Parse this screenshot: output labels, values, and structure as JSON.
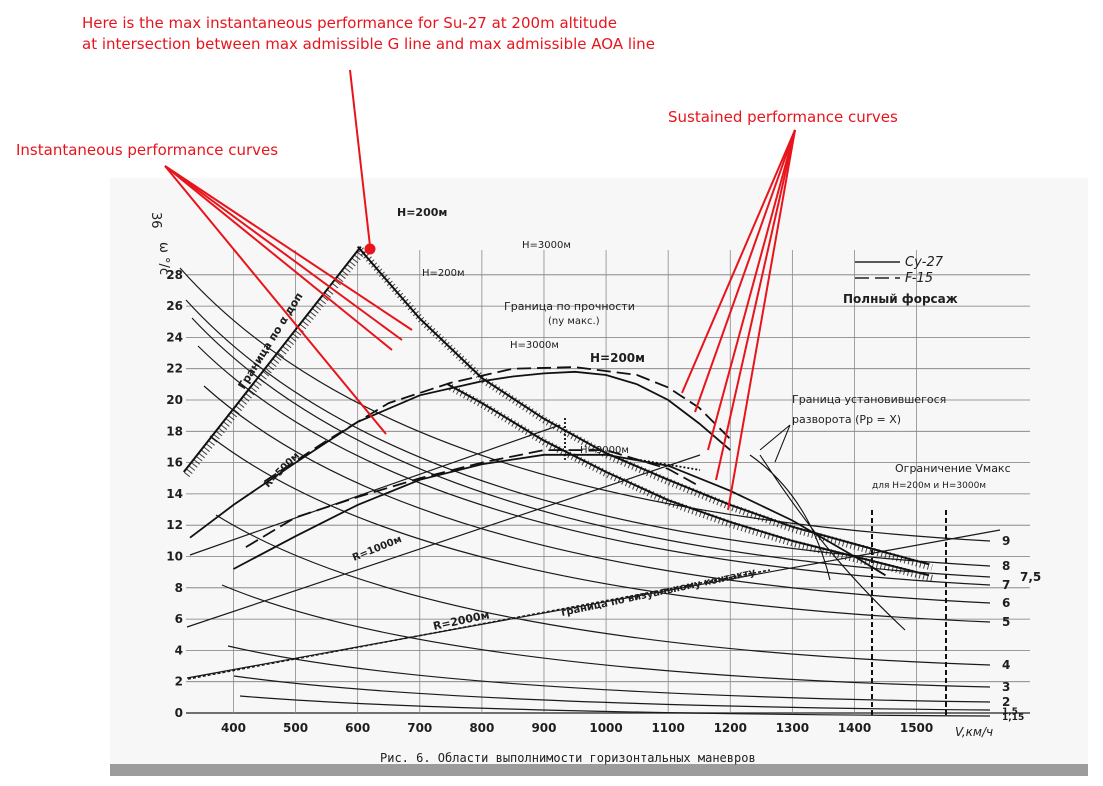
{
  "annotations": {
    "top_line1": "Here is the max instantaneous performance for Su-27 at 200m altitude",
    "top_line2": "at intersection between max admissible G line and max admissible AOA line",
    "instantaneous": "Instantaneous performance curves",
    "sustained": "Sustained performance curves",
    "color": "#e8141c"
  },
  "chart_data": {
    "type": "line",
    "title": "Рис. 6. Области выполнимости горизонтальных маневров",
    "page_number": "36",
    "xlabel": "V,км/ч",
    "ylabel": "ω °/c",
    "xlim": [
      300,
      1560
    ],
    "ylim": [
      0,
      32
    ],
    "x_ticks": [
      "400",
      "500",
      "600",
      "700",
      "800",
      "900",
      "1000",
      "1100",
      "1200",
      "1300",
      "1400",
      "1500"
    ],
    "y_ticks": [
      "0",
      "2",
      "4",
      "6",
      "8",
      "10",
      "12",
      "14",
      "16",
      "18",
      "20",
      "22",
      "24",
      "26",
      "28"
    ],
    "grid": true,
    "legend": {
      "placement": "top-right",
      "entries": [
        "Су-27",
        "F-15"
      ],
      "styles": [
        "solid",
        "dashed"
      ]
    },
    "subtitle": "Полный форсаж",
    "limit_labels": {
      "aoa": "Граница по α доп",
      "strength_line1": "Граница по прочности",
      "strength_line2": "(nу макс.)",
      "sustained_line1": "Граница установившегося",
      "sustained_line2": "разворота (Pр = X)",
      "vmax_line1": "Ограничение Vмакс",
      "vmax_line2": "для H=200м и H=3000м",
      "visual": "граница по визуальному контакту"
    },
    "altitude_labels": [
      "H=200м",
      "H=3000м",
      "H=200м",
      "H=3000м",
      "H=200м",
      "H=3000м"
    ],
    "radius_labels": [
      "R=500м",
      "R=1000м",
      "R=2000м"
    ],
    "g_load_labels": [
      "9",
      "8",
      "7,5",
      "7",
      "6",
      "5",
      "4",
      "3",
      "2",
      "1,5",
      "1,15"
    ],
    "aoa_limit": {
      "x": [
        320,
        605
      ],
      "y": [
        15.4,
        29.8
      ]
    },
    "strength_limit_200": {
      "x": [
        600,
        700,
        800,
        900,
        1000,
        1100,
        1200,
        1300,
        1400,
        1520
      ],
      "y": [
        29.8,
        25.2,
        21.4,
        18.8,
        16.6,
        14.9,
        13.3,
        11.9,
        10.8,
        9.5
      ]
    },
    "strength_limit_3000": {
      "x": [
        745,
        800,
        900,
        1000,
        1100,
        1200,
        1300,
        1400,
        1520
      ],
      "y": [
        21.0,
        19.8,
        17.4,
        15.4,
        13.6,
        12.2,
        11.0,
        10.0,
        8.8
      ]
    },
    "series": [
      {
        "name": "Су-27",
        "label": "H=200м",
        "style": "solid",
        "x": [
          330,
          400,
          500,
          600,
          700,
          800,
          850,
          900,
          950,
          1000,
          1050,
          1100,
          1150,
          1200
        ],
        "y": [
          11.2,
          13.3,
          16.0,
          18.6,
          20.3,
          21.2,
          21.5,
          21.7,
          21.8,
          21.6,
          21.0,
          20.0,
          18.5,
          16.8
        ]
      },
      {
        "name": "F-15",
        "label": "H=200м",
        "style": "dashed",
        "x": [
          450,
          550,
          650,
          750,
          850,
          950,
          1050,
          1100,
          1150,
          1200
        ],
        "y": [
          14.8,
          17.4,
          19.8,
          21.1,
          22.0,
          22.1,
          21.6,
          20.8,
          19.5,
          17.5
        ]
      },
      {
        "name": "Су-27",
        "label": "H=3000м",
        "style": "solid",
        "x": [
          400,
          500,
          600,
          700,
          800,
          900,
          1000,
          1100,
          1200,
          1300,
          1400,
          1450
        ],
        "y": [
          9.2,
          11.3,
          13.3,
          14.9,
          15.9,
          16.5,
          16.5,
          15.8,
          14.2,
          12.3,
          10.0,
          8.8
        ]
      },
      {
        "name": "F-15",
        "label": "H=3000м",
        "style": "dashed",
        "x": [
          420,
          500,
          600,
          700,
          800,
          900,
          1000,
          1100,
          1150
        ],
        "y": [
          10.6,
          12.5,
          13.8,
          15.0,
          16.0,
          16.8,
          16.8,
          15.6,
          14.5
        ]
      }
    ]
  }
}
